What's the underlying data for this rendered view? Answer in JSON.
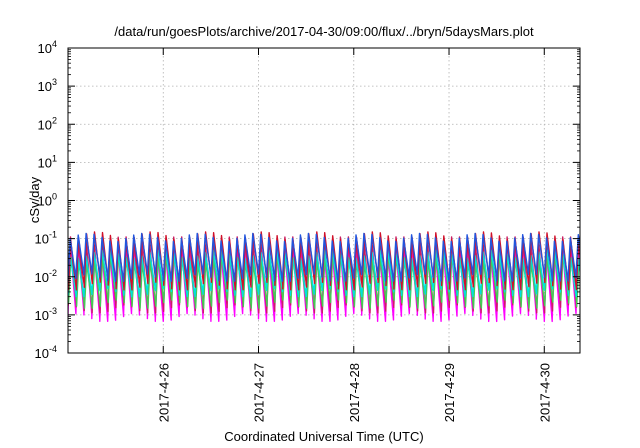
{
  "chart_data": {
    "type": "line",
    "title": "/data/run/goesPlots/archive/2017-04-30/09:00/flux/../bryn/5daysMars.plot",
    "xlabel": "Coordinated Universal Time (UTC)",
    "ylabel": "cSv/day",
    "yscale": "log",
    "ylim": [
      0.0001,
      10000
    ],
    "y_ticks": [
      {
        "value": 0.0001,
        "base": "10",
        "exp": "-4"
      },
      {
        "value": 0.001,
        "base": "10",
        "exp": "-3"
      },
      {
        "value": 0.01,
        "base": "10",
        "exp": "-2"
      },
      {
        "value": 0.1,
        "base": "10",
        "exp": "-1"
      },
      {
        "value": 1,
        "base": "10",
        "exp": "0"
      },
      {
        "value": 10,
        "base": "10",
        "exp": "1"
      },
      {
        "value": 100,
        "base": "10",
        "exp": "2"
      },
      {
        "value": 1000,
        "base": "10",
        "exp": "3"
      },
      {
        "value": 10000,
        "base": "10",
        "exp": "4"
      }
    ],
    "xlim": [
      "2017-04-25 00:00",
      "2017-04-30 09:00"
    ],
    "x_ticks": [
      "2017-4-26",
      "2017-4-27",
      "2017-4-28",
      "2017-4-29",
      "2017-4-30"
    ],
    "grid": true,
    "cycle_hours": 2,
    "series": [
      {
        "color": "#ff00ff",
        "peak": 0.06,
        "min": 0.0009
      },
      {
        "color": "#cc1f66",
        "peak": 0.09,
        "min": 0.0015
      },
      {
        "color": "#44cc55",
        "peak": 0.03,
        "min": 0.002
      },
      {
        "color": "#00e0e0",
        "peak": 0.04,
        "min": 0.004
      },
      {
        "color": "#d0102a",
        "peak": 0.12,
        "min": 0.006
      },
      {
        "color": "#2255dd",
        "peak": 0.11,
        "min": 0.01
      }
    ]
  }
}
